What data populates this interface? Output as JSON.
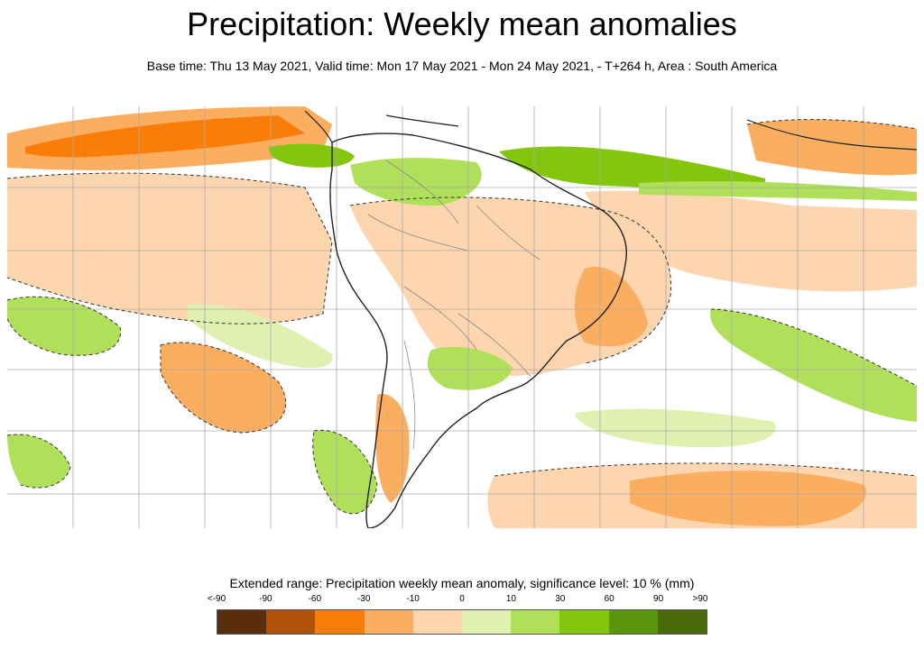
{
  "header": {
    "title": "Precipitation: Weekly mean anomalies",
    "subtitle": "Base time: Thu 13 May 2021, Valid time: Mon 17 May 2021 - Mon 24 May 2021, - T+264 h, Area : South America"
  },
  "legend": {
    "title": "Extended range: Precipitation weekly mean anomaly, significance level: 10 % (mm)",
    "ticks": [
      "<-90",
      "-90",
      "-60",
      "-30",
      "-10",
      "0",
      "10",
      "30",
      "60",
      "90",
      ">90"
    ],
    "colors": [
      "#5a2d0c",
      "#b0520a",
      "#fa7d0a",
      "#fbae5f",
      "#fdd5ae",
      "#dff0b0",
      "#b0e05a",
      "#84c60e",
      "#5a960c",
      "#4a6a0a"
    ]
  },
  "map": {
    "region": "South America",
    "colors": {
      "ocean_bg": "#ffffff",
      "gridline": "#aaaaaa",
      "coastline": "#222222",
      "border": "#888888"
    }
  }
}
